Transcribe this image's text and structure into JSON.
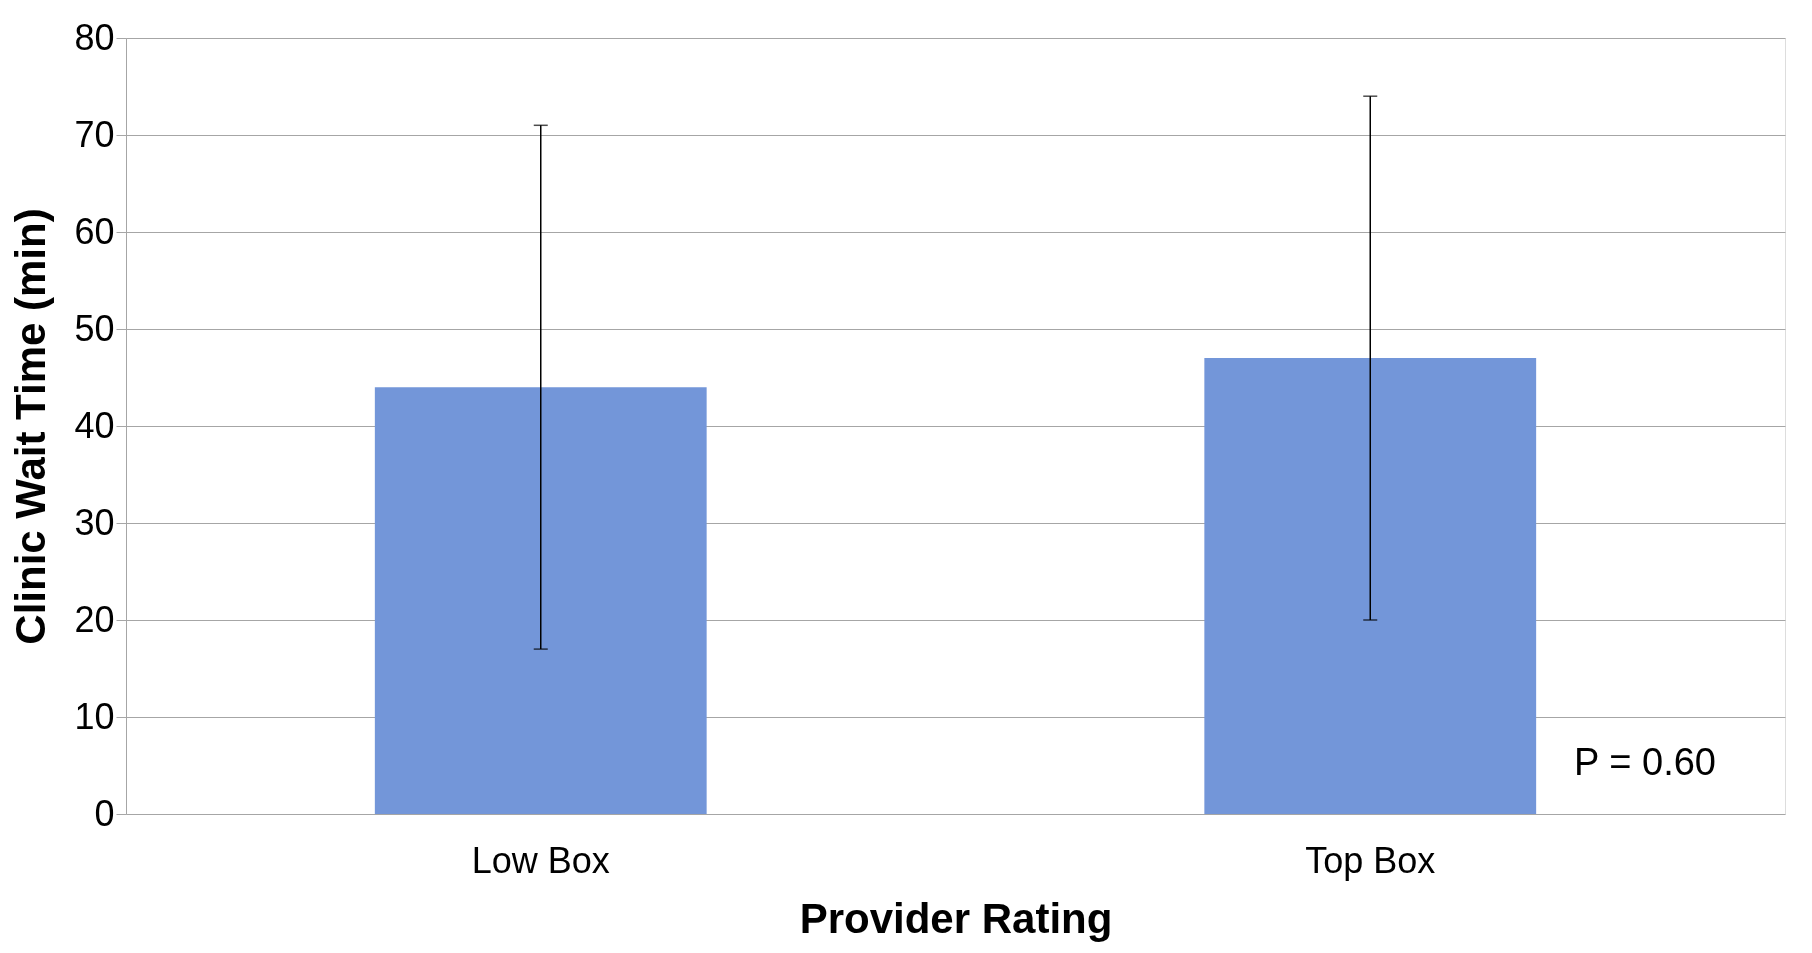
{
  "chart_data": {
    "type": "bar",
    "xlabel": "Provider Rating",
    "ylabel": "Clinic Wait Time (min)",
    "categories": [
      "Low Box",
      "Top Box"
    ],
    "values": [
      44,
      47
    ],
    "color": "#7396d9",
    "errors": [
      [
        17,
        71
      ],
      [
        20,
        74
      ]
    ],
    "ylim": [
      0,
      80
    ],
    "yticks": [
      0,
      10,
      20,
      30,
      40,
      50,
      60,
      70,
      80
    ],
    "grid": "y",
    "annotations": [
      "P = 0.60"
    ]
  }
}
